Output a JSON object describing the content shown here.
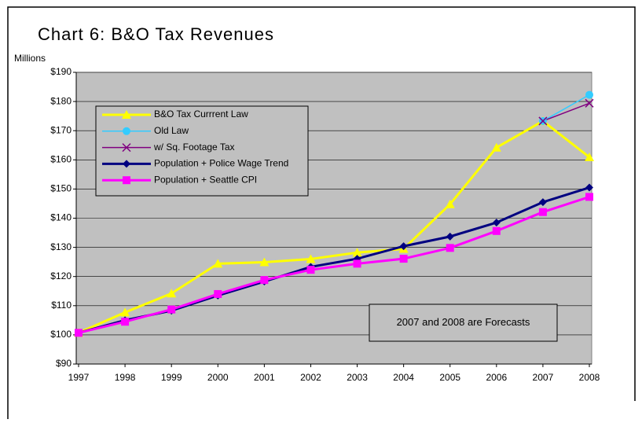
{
  "chart_data": {
    "type": "line",
    "title": "Chart 6: B&O Tax Revenues",
    "y_label": "Millions",
    "annotation": "2007 and 2008 are Forecasts",
    "categories": [
      "1997",
      "1998",
      "1999",
      "2000",
      "2001",
      "2002",
      "2003",
      "2004",
      "2005",
      "2006",
      "2007",
      "2008"
    ],
    "series": [
      {
        "name": "B&O Tax Currrent Law",
        "color": "#FFFF00",
        "marker": "triangle",
        "values": [
          100.7,
          107.7,
          114.2,
          124.4,
          124.9,
          126,
          128.2,
          129.5,
          144.8,
          164.2,
          173.3,
          160.9
        ]
      },
      {
        "name": "Old Law",
        "color": "#33CCFF",
        "marker": "circle",
        "values": [
          null,
          null,
          null,
          null,
          null,
          null,
          null,
          null,
          null,
          null,
          173.3,
          182.3
        ]
      },
      {
        "name": "w/ Sq. Footage Tax",
        "color": "#800080",
        "marker": "x",
        "values": [
          null,
          null,
          null,
          null,
          null,
          null,
          null,
          null,
          null,
          null,
          173.3,
          179.4
        ]
      },
      {
        "name": "Population + Police Wage Trend",
        "color": "#000080",
        "marker": "diamond",
        "values": [
          100.7,
          105,
          108.3,
          113.5,
          118.3,
          123.3,
          126.1,
          130.4,
          133.7,
          138.5,
          145.5,
          150.5
        ]
      },
      {
        "name": "Population + Seattle CPI",
        "color": "#FF00FF",
        "marker": "square",
        "values": [
          100.7,
          104.5,
          108.7,
          114,
          118.8,
          122.3,
          124.4,
          126.1,
          129.8,
          135.6,
          142.1,
          147.3
        ]
      }
    ],
    "ylim": [
      90,
      190
    ],
    "yticks": [
      {
        "value": 90,
        "label": "$90"
      },
      {
        "value": 100,
        "label": "$100"
      },
      {
        "value": 110,
        "label": "$110"
      },
      {
        "value": 120,
        "label": "$120"
      },
      {
        "value": 130,
        "label": "$130"
      },
      {
        "value": 140,
        "label": "$140"
      },
      {
        "value": 150,
        "label": "$150"
      },
      {
        "value": 160,
        "label": "$160"
      },
      {
        "value": 170,
        "label": "$170"
      },
      {
        "value": 180,
        "label": "$180"
      },
      {
        "value": 190,
        "label": "$190"
      }
    ],
    "grid": true,
    "legend": "upper left"
  }
}
